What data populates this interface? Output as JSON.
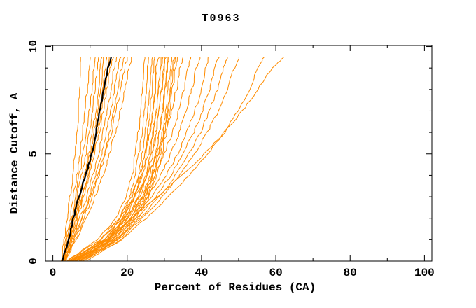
{
  "chart_data": {
    "type": "line",
    "title": "T0963",
    "xlabel": "Percent of Residues (CA)",
    "ylabel": "Distance Cutoff, A",
    "xlim": [
      -2,
      102
    ],
    "ylim": [
      0,
      10.05
    ],
    "grid": false,
    "legend": "none",
    "line_color": "#ff8c00",
    "highlight_color": "#000000",
    "x_ticks": {
      "major": [
        0,
        20,
        40,
        60,
        80,
        100
      ],
      "minor": [
        10,
        30,
        50,
        70,
        90
      ],
      "labels": [
        "0",
        "20",
        "40",
        "60",
        "80",
        "100"
      ]
    },
    "y_ticks": {
      "major": [
        0,
        5,
        10
      ],
      "minor": [
        1,
        2,
        3,
        4,
        6,
        7,
        8,
        9
      ],
      "labels": [
        "0",
        "5",
        "10"
      ]
    },
    "cutoff_levels": [
      0,
      1,
      2,
      3,
      4,
      5,
      6,
      7,
      8,
      9,
      9.5
    ],
    "curves": [
      [
        2.2,
        3.0,
        3.8,
        4.6,
        5.3,
        5.9,
        6.4,
        6.8,
        7.1,
        7.4,
        7.6
      ],
      [
        2.5,
        3.6,
        4.6,
        5.5,
        6.4,
        7.2,
        7.9,
        8.6,
        9.2,
        9.7,
        10.0
      ],
      [
        2.8,
        4.0,
        5.1,
        6.1,
        7.1,
        8.1,
        9.0,
        9.8,
        10.4,
        10.9,
        11.2
      ],
      [
        2.4,
        3.8,
        5.2,
        6.5,
        7.7,
        8.8,
        9.8,
        10.6,
        11.3,
        11.8,
        12.1
      ],
      [
        3.0,
        4.5,
        5.9,
        7.2,
        8.5,
        9.6,
        10.6,
        11.5,
        12.2,
        12.6,
        13.0
      ],
      [
        2.6,
        4.2,
        5.7,
        7.2,
        8.6,
        9.9,
        11.0,
        12.0,
        12.8,
        13.3,
        13.7
      ],
      [
        3.2,
        4.9,
        6.5,
        8.0,
        9.4,
        10.6,
        11.7,
        12.7,
        13.4,
        14.0,
        14.4
      ],
      [
        2.9,
        4.6,
        6.2,
        7.8,
        9.3,
        10.7,
        12.0,
        13.1,
        14.0,
        14.6,
        15.1
      ],
      [
        3.5,
        5.1,
        6.7,
        8.2,
        9.7,
        11.1,
        12.4,
        13.5,
        14.5,
        15.3,
        16.2
      ],
      [
        3.1,
        5.3,
        7.3,
        9.1,
        10.8,
        12.2,
        13.5,
        14.6,
        15.6,
        16.4,
        17.1
      ],
      [
        3.4,
        5.7,
        7.8,
        9.7,
        11.4,
        13.0,
        14.3,
        15.5,
        16.5,
        17.4,
        18.1
      ],
      [
        2.9,
        5.5,
        7.9,
        10.1,
        12.0,
        13.7,
        15.2,
        16.4,
        17.5,
        18.4,
        19.1
      ],
      [
        3.6,
        6.1,
        8.4,
        10.5,
        12.4,
        14.1,
        15.7,
        17.0,
        18.2,
        19.2,
        20.1
      ],
      [
        3.3,
        6.3,
        9.0,
        11.3,
        13.4,
        15.2,
        16.8,
        18.2,
        19.4,
        20.4,
        21.2
      ],
      [
        3.8,
        12.0,
        17.0,
        19.8,
        21.3,
        22.2,
        23.0,
        23.5,
        24.0,
        24.4,
        24.7
      ],
      [
        4.5,
        13.8,
        18.0,
        20.6,
        22.1,
        23.1,
        23.9,
        24.5,
        25.0,
        25.4,
        25.7
      ],
      [
        5.0,
        14.8,
        18.9,
        21.4,
        22.9,
        24.0,
        24.8,
        25.4,
        25.9,
        26.3,
        26.6
      ],
      [
        5.5,
        15.4,
        19.6,
        22.1,
        23.6,
        24.7,
        25.5,
        26.1,
        26.6,
        27.0,
        27.3
      ],
      [
        4.2,
        14.4,
        19.0,
        22.0,
        23.9,
        25.2,
        26.1,
        26.8,
        27.3,
        27.7,
        28.0
      ],
      [
        6.0,
        16.0,
        20.4,
        23.0,
        24.9,
        26.2,
        27.1,
        27.8,
        28.3,
        28.8,
        29.1
      ],
      [
        5.2,
        15.0,
        20.0,
        23.4,
        25.5,
        26.8,
        27.8,
        28.5,
        29.1,
        29.6,
        30.0
      ],
      [
        6.5,
        16.9,
        21.4,
        24.4,
        26.4,
        27.7,
        28.7,
        29.5,
        30.1,
        30.6,
        31.0
      ],
      [
        5.8,
        16.4,
        21.0,
        24.7,
        26.9,
        28.3,
        29.4,
        30.2,
        30.9,
        31.5,
        31.9
      ],
      [
        7.0,
        17.8,
        22.3,
        25.4,
        27.4,
        28.9,
        30.0,
        30.9,
        31.7,
        32.3,
        32.8
      ],
      [
        7.8,
        18.8,
        23.0,
        25.9,
        27.9,
        29.4,
        30.5,
        31.4,
        32.2,
        32.9,
        33.4
      ],
      [
        3.9,
        12.8,
        17.8,
        21.0,
        23.3,
        24.9,
        26.0,
        26.8,
        27.5,
        28.0,
        28.4
      ],
      [
        4.8,
        13.6,
        18.6,
        21.9,
        24.2,
        25.7,
        26.8,
        27.7,
        28.4,
        29.0,
        29.4
      ],
      [
        5.4,
        14.6,
        19.9,
        23.0,
        25.2,
        26.6,
        27.7,
        28.6,
        29.3,
        29.9,
        30.3
      ],
      [
        6.2,
        15.8,
        20.8,
        24.0,
        26.1,
        27.5,
        28.6,
        29.4,
        30.1,
        30.7,
        31.1
      ],
      [
        7.4,
        17.4,
        21.9,
        24.9,
        27.0,
        28.5,
        29.7,
        30.7,
        31.5,
        32.1,
        32.6
      ],
      [
        5.0,
        13.0,
        18.0,
        22.0,
        25.4,
        28.0,
        30.1,
        31.9,
        33.3,
        34.3,
        35.0
      ],
      [
        6.0,
        14.0,
        19.6,
        24.0,
        27.4,
        30.0,
        32.1,
        33.9,
        35.3,
        36.4,
        37.1
      ],
      [
        6.4,
        15.0,
        21.0,
        25.5,
        29.0,
        31.8,
        34.0,
        35.9,
        37.4,
        38.6,
        39.5
      ],
      [
        7.0,
        15.4,
        21.6,
        26.5,
        30.5,
        33.6,
        36.1,
        38.2,
        39.9,
        41.1,
        42.0
      ],
      [
        7.4,
        16.0,
        22.5,
        27.6,
        31.7,
        35.0,
        37.9,
        40.3,
        42.1,
        43.5,
        44.5
      ],
      [
        8.0,
        17.0,
        23.5,
        28.7,
        33.0,
        36.6,
        39.7,
        42.2,
        44.2,
        45.8,
        47.0
      ],
      [
        8.4,
        17.6,
        24.1,
        29.5,
        34.1,
        38.1,
        41.5,
        44.5,
        47.0,
        48.8,
        50.1
      ],
      [
        9.0,
        18.2,
        25.1,
        31.1,
        36.6,
        41.6,
        46.0,
        49.8,
        52.9,
        55.2,
        56.6
      ],
      [
        6.2,
        14.2,
        21.2,
        28.2,
        34.8,
        40.8,
        46.2,
        51.0,
        55.2,
        59.0,
        62.2
      ]
    ],
    "highlight_curve": [
      2.5,
      4.2,
      5.5,
      7.0,
      8.8,
      10.5,
      11.6,
      12.6,
      13.7,
      14.8,
      15.8
    ]
  }
}
